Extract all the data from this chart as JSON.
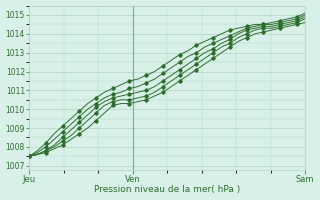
{
  "title": "",
  "xlabel": "Pression niveau de la mer( hPa )",
  "bg_color": "#d8f0e8",
  "grid_color": "#b0d4c0",
  "line_color": "#2d6e2d",
  "ylim": [
    1006.8,
    1015.5
  ],
  "xlim": [
    0,
    48
  ],
  "xticks": [
    0,
    18,
    48
  ],
  "xtick_labels": [
    "Jeu",
    "Ven",
    "Sam"
  ],
  "yticks": [
    1007,
    1008,
    1009,
    1010,
    1011,
    1012,
    1013,
    1014,
    1015
  ],
  "series": [
    [
      1007.5,
      1007.6,
      1007.7,
      1007.9,
      1008.1,
      1008.4,
      1008.7,
      1009.0,
      1009.4,
      1009.8,
      1010.2,
      1010.3,
      1010.3,
      1010.4,
      1010.5,
      1010.7,
      1010.9,
      1011.2,
      1011.5,
      1011.8,
      1012.1,
      1012.4,
      1012.7,
      1013.0,
      1013.3,
      1013.6,
      1013.8,
      1014.0,
      1014.1,
      1014.2,
      1014.3,
      1014.4,
      1014.5,
      1014.6
    ],
    [
      1007.5,
      1007.6,
      1007.8,
      1008.0,
      1008.3,
      1008.6,
      1009.0,
      1009.4,
      1009.8,
      1010.2,
      1010.4,
      1010.5,
      1010.5,
      1010.6,
      1010.7,
      1010.9,
      1011.2,
      1011.5,
      1011.8,
      1012.1,
      1012.4,
      1012.7,
      1013.0,
      1013.3,
      1013.5,
      1013.8,
      1014.0,
      1014.2,
      1014.3,
      1014.3,
      1014.4,
      1014.5,
      1014.6,
      1014.8
    ],
    [
      1007.5,
      1007.6,
      1007.8,
      1008.1,
      1008.5,
      1008.9,
      1009.3,
      1009.7,
      1010.1,
      1010.4,
      1010.6,
      1010.7,
      1010.8,
      1010.9,
      1011.0,
      1011.2,
      1011.5,
      1011.8,
      1012.1,
      1012.4,
      1012.7,
      1013.0,
      1013.2,
      1013.5,
      1013.7,
      1014.0,
      1014.2,
      1014.3,
      1014.4,
      1014.4,
      1014.5,
      1014.6,
      1014.7,
      1014.9
    ],
    [
      1007.5,
      1007.7,
      1008.0,
      1008.4,
      1008.8,
      1009.2,
      1009.6,
      1010.0,
      1010.3,
      1010.6,
      1010.8,
      1010.9,
      1011.1,
      1011.2,
      1011.4,
      1011.6,
      1011.9,
      1012.2,
      1012.5,
      1012.8,
      1013.0,
      1013.3,
      1013.5,
      1013.7,
      1013.9,
      1014.1,
      1014.3,
      1014.4,
      1014.5,
      1014.5,
      1014.6,
      1014.7,
      1014.8,
      1015.0
    ],
    [
      1007.5,
      1007.8,
      1008.2,
      1008.7,
      1009.1,
      1009.5,
      1009.9,
      1010.3,
      1010.6,
      1010.9,
      1011.1,
      1011.3,
      1011.5,
      1011.6,
      1011.8,
      1012.0,
      1012.3,
      1012.6,
      1012.9,
      1013.1,
      1013.4,
      1013.6,
      1013.8,
      1014.0,
      1014.2,
      1014.3,
      1014.4,
      1014.5,
      1014.5,
      1014.6,
      1014.7,
      1014.8,
      1014.9,
      1015.1
    ]
  ],
  "marker_every": 2,
  "n_points": 34,
  "figsize": [
    3.2,
    2.0
  ],
  "dpi": 100
}
